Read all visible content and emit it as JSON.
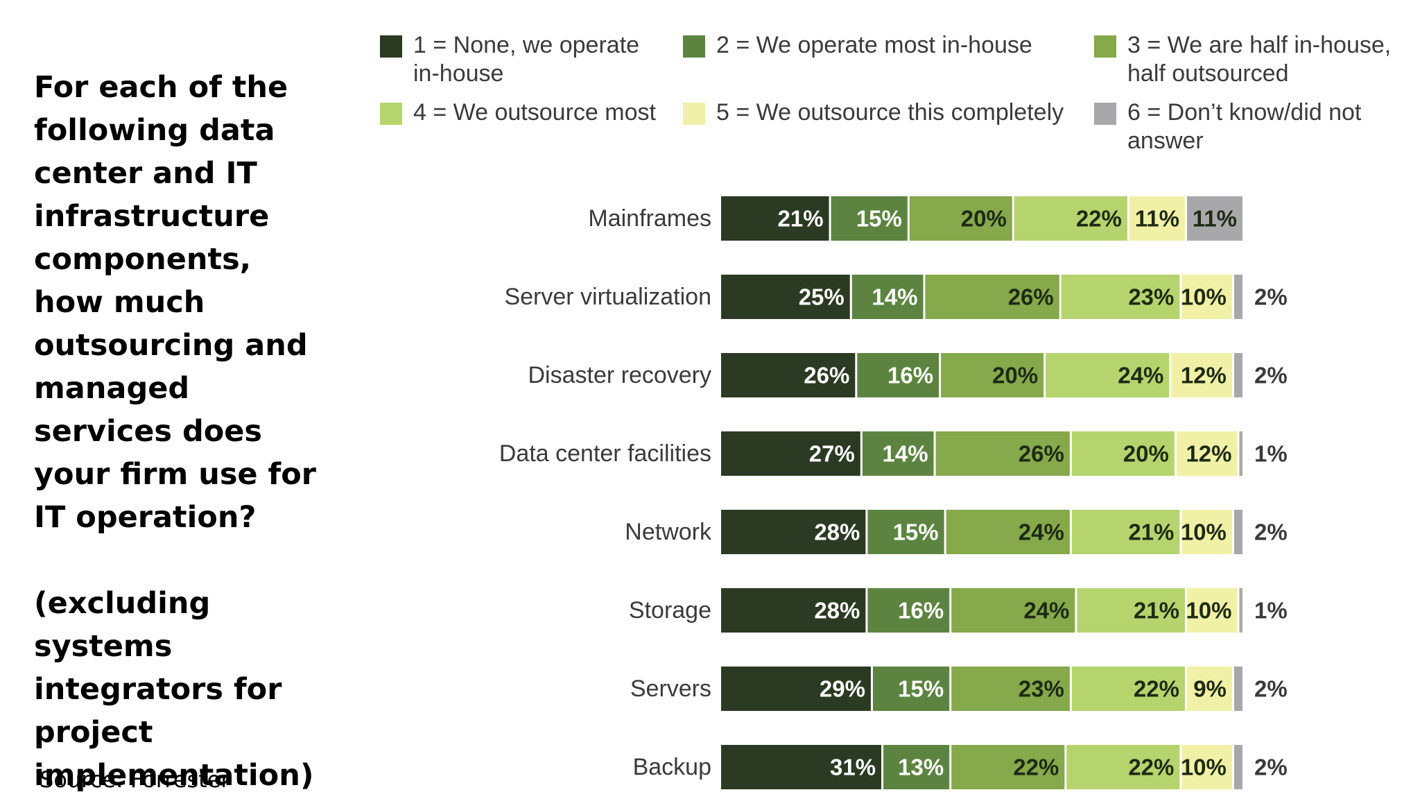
{
  "question": {
    "main": "For each of the following data center and IT infrastructure components, how much outsourcing and managed services does your firm use for IT operation?",
    "note": "(excluding systems integrators for project implementation)"
  },
  "source": "Source: Forrester",
  "chart_data": {
    "type": "bar",
    "orientation": "horizontal",
    "stacked": true,
    "categories": [
      "Mainframes",
      "Server virtualization",
      "Disaster recovery",
      "Data center facilities",
      "Network",
      "Storage",
      "Servers",
      "Backup"
    ],
    "series": [
      {
        "name": "1 = None, we operate in-house",
        "color": "#2b3a22",
        "label_color": "#ffffff",
        "values": [
          21,
          25,
          26,
          27,
          28,
          28,
          29,
          31
        ]
      },
      {
        "name": "2 = We operate most in-house",
        "color": "#5c8440",
        "label_color": "#ffffff",
        "values": [
          15,
          14,
          16,
          14,
          15,
          16,
          15,
          13
        ]
      },
      {
        "name": "3 = We are half in-house, half outsourced",
        "color": "#85a94b",
        "label_color": "#1e2a14",
        "values": [
          20,
          26,
          20,
          26,
          24,
          24,
          23,
          22
        ]
      },
      {
        "name": "4 = We outsource most",
        "color": "#b5d46e",
        "label_color": "#1e2a14",
        "values": [
          22,
          23,
          24,
          20,
          21,
          21,
          22,
          22
        ]
      },
      {
        "name": "5 = We outsource this completely",
        "color": "#f0f1a6",
        "label_color": "#1e2a14",
        "values": [
          11,
          10,
          12,
          12,
          10,
          10,
          9,
          10
        ]
      },
      {
        "name": "6 = Don’t know/did not answer",
        "color": "#a8a8aa",
        "label_color": "#1e2a14",
        "values": [
          11,
          2,
          2,
          1,
          2,
          1,
          2,
          2
        ]
      }
    ],
    "xlim": [
      0,
      100
    ],
    "legend": "top",
    "grid": false
  }
}
